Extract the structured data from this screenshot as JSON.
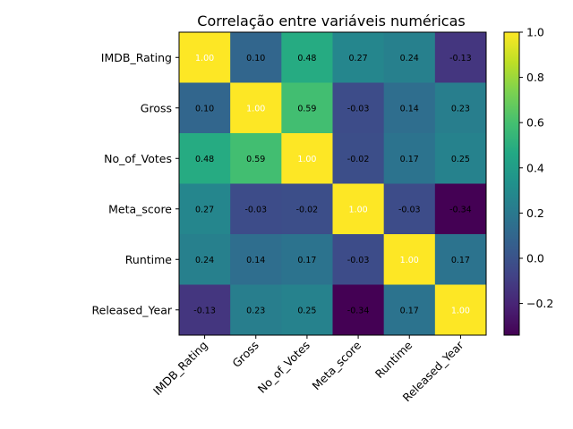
{
  "chart_data": {
    "type": "heatmap",
    "title": "Correlação entre variáveis numéricas",
    "xlabel": "",
    "ylabel": "",
    "rows": [
      "IMDB_Rating",
      "Gross",
      "No_of_Votes",
      "Meta_score",
      "Runtime",
      "Released_Year"
    ],
    "columns": [
      "IMDB_Rating",
      "Gross",
      "No_of_Votes",
      "Meta_score",
      "Runtime",
      "Released_Year"
    ],
    "values": [
      [
        1.0,
        0.1,
        0.48,
        0.27,
        0.24,
        -0.13
      ],
      [
        0.1,
        1.0,
        0.59,
        -0.03,
        0.14,
        0.23
      ],
      [
        0.48,
        0.59,
        1.0,
        -0.02,
        0.17,
        0.25
      ],
      [
        0.27,
        -0.03,
        -0.02,
        1.0,
        -0.03,
        -0.34
      ],
      [
        0.24,
        0.14,
        0.17,
        -0.03,
        1.0,
        0.17
      ],
      [
        -0.13,
        0.23,
        0.25,
        -0.34,
        0.17,
        1.0
      ]
    ],
    "value_format_decimals": 2,
    "colormap": "viridis",
    "color_range": [
      -0.34,
      1.0
    ],
    "colorbar_ticks": [
      -0.2,
      0.0,
      0.2,
      0.4,
      0.6,
      0.8,
      1.0
    ],
    "colorbar_tick_labels": [
      "−0.2",
      "0.0",
      "0.2",
      "0.4",
      "0.6",
      "0.8",
      "1.0"
    ],
    "x_tick_rotation": 45,
    "grid": false,
    "legend": "colorbar-right"
  }
}
